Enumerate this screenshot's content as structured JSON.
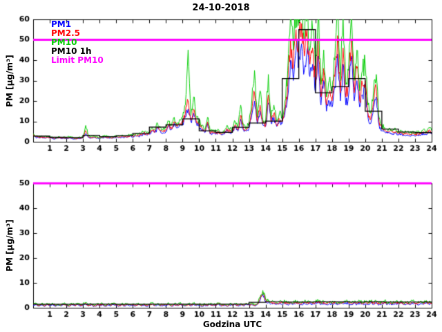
{
  "legend": [
    {
      "label": "PM1",
      "color": "#0000ff"
    },
    {
      "label": "PM2.5",
      "color": "#ff0000"
    },
    {
      "label": "PM10",
      "color": "#00cc00"
    },
    {
      "label": "PM10 1h",
      "color": "#000000"
    },
    {
      "label": "Limit PM10",
      "color": "#ff00ff"
    }
  ],
  "chart_data": [
    {
      "type": "line",
      "title": "24-10-2018",
      "ylabel": "PM [µg/m³]",
      "xlabel": "",
      "xlim": [
        0,
        24
      ],
      "ylim": [
        0,
        60
      ],
      "xticks": [
        1,
        2,
        3,
        4,
        5,
        6,
        7,
        8,
        9,
        10,
        11,
        12,
        13,
        14,
        15,
        16,
        17,
        18,
        19,
        20,
        21,
        22,
        23,
        24
      ],
      "yticks": [
        0,
        10,
        20,
        30,
        40,
        50,
        60
      ],
      "grid": false,
      "legend_position": "top-left-inside",
      "series": [
        {
          "name": "PM1",
          "color": "#0000ff",
          "jitter": 0.15,
          "values": [
            2.8,
            2.2,
            1.9,
            2.2,
            1.9,
            2.1,
            1.9,
            1.7,
            1.5,
            1.8,
            1.6,
            1.7,
            1.5,
            1.9,
            1.7,
            1.4,
            1.5,
            1.7,
            1.9,
            4,
            2.2,
            1.9,
            2.1,
            1.8,
            1.7,
            1.9,
            2.2,
            2,
            1.7,
            1.9,
            2.2,
            2,
            2.4,
            2.1,
            2.2,
            2.6,
            2.4,
            3,
            2.7,
            3.2,
            3.7,
            3.4,
            3.7,
            5.2,
            4.5,
            6.7,
            5.2,
            4.5,
            5.2,
            7.5,
            6,
            9,
            6.7,
            8.2,
            9,
            12,
            16,
            9.7,
            14,
            9,
            7.5,
            6,
            4.5,
            9,
            3.7,
            4.5,
            3.7,
            4.5,
            3.4,
            3.7,
            6,
            4.5,
            4.5,
            7.5,
            5.2,
            11,
            6,
            5.2,
            6.7,
            13,
            20,
            9,
            15,
            8.2,
            7.5,
            19,
            9,
            12,
            7.5,
            10,
            9,
            14,
            22,
            40,
            30,
            45,
            42,
            48,
            35,
            45,
            32,
            38,
            24,
            42,
            18,
            30,
            15,
            20,
            17,
            27,
            43,
            20,
            38,
            18,
            23,
            42,
            20,
            30,
            17,
            23,
            25,
            12,
            9,
            17,
            22,
            8.2,
            5.5,
            4.8,
            4.2,
            4.5,
            3.9,
            4.2,
            3.4,
            3.9,
            3.1,
            3.4,
            2.9,
            3.3,
            2.8,
            3.4,
            3.1,
            4.2,
            3.4,
            4.8,
            3.9
          ]
        },
        {
          "name": "PM2.5",
          "color": "#ff0000",
          "jitter": 0.15,
          "values": [
            3.2,
            2.5,
            2.1,
            2.5,
            2.1,
            2.4,
            2.1,
            1.9,
            1.7,
            2,
            1.8,
            2,
            1.7,
            2.1,
            1.9,
            1.5,
            1.7,
            1.9,
            2.1,
            5.5,
            2.5,
            2.1,
            2.4,
            2,
            1.9,
            2.1,
            2.5,
            2.2,
            2,
            2.1,
            2.5,
            2.3,
            2.7,
            2.4,
            2.5,
            3,
            2.7,
            3.4,
            3,
            3.6,
            4.2,
            3.8,
            4.2,
            5.8,
            5,
            7.4,
            5.8,
            5,
            5.8,
            8.2,
            6.6,
            9.8,
            7.4,
            9,
            9.8,
            14,
            20,
            10.5,
            16,
            9.8,
            8.2,
            6.6,
            5,
            9.8,
            4.1,
            5,
            4.1,
            5,
            3.7,
            4.1,
            6.5,
            5,
            5,
            8.2,
            5.8,
            13,
            6.6,
            5.8,
            7.4,
            15,
            24,
            9.8,
            18,
            9,
            8.2,
            23,
            9.8,
            14,
            8.2,
            11,
            9.8,
            16,
            27,
            50,
            36,
            55,
            50,
            58,
            42,
            55,
            38,
            46,
            28,
            50,
            22,
            36,
            18,
            24,
            20,
            32,
            52,
            24,
            46,
            22,
            28,
            50,
            24,
            36,
            20,
            28,
            30,
            14,
            11,
            20,
            26,
            9.8,
            6.6,
            5.8,
            5,
            5.4,
            4.6,
            5,
            4.1,
            4.6,
            3.7,
            4.1,
            3.5,
            4,
            3.3,
            4.1,
            3.7,
            5,
            4.1,
            5.8,
            4.6
          ]
        },
        {
          "name": "PM10",
          "color": "#00cc00",
          "jitter": 0.15,
          "values": [
            4,
            3,
            2.5,
            3,
            2.5,
            2.8,
            2.5,
            2.2,
            2,
            2.4,
            2.1,
            2.3,
            2,
            2.5,
            2.2,
            1.8,
            2,
            2.2,
            2.5,
            8,
            3,
            2.5,
            2.8,
            2.4,
            2.2,
            2.5,
            3,
            2.6,
            2.3,
            2.5,
            3,
            2.7,
            3.2,
            2.8,
            3,
            3.5,
            3.2,
            4,
            3.6,
            4.2,
            5,
            4.5,
            5,
            7,
            6,
            9,
            7,
            6,
            7,
            10,
            8,
            12,
            9,
            11,
            12,
            18,
            45,
            13,
            22,
            12,
            10,
            8,
            6,
            12,
            5,
            6,
            5,
            6,
            4.5,
            5,
            8,
            6,
            6,
            10,
            7,
            18,
            8,
            7,
            9,
            20,
            35,
            12,
            25,
            11,
            10,
            33,
            12,
            18,
            10,
            14,
            12,
            20,
            35,
            62,
            45,
            65,
            60,
            65,
            50,
            63,
            45,
            55,
            35,
            62,
            28,
            45,
            22,
            30,
            25,
            40,
            65,
            30,
            62,
            28,
            35,
            62,
            30,
            45,
            25,
            35,
            38,
            18,
            14,
            25,
            33,
            12,
            8,
            7,
            6,
            6.5,
            5.5,
            6,
            5,
            5.5,
            4.5,
            5,
            4.2,
            4.8,
            4,
            5,
            4.5,
            6,
            5,
            7,
            5.5
          ]
        },
        {
          "name": "PM10 1h",
          "type": "step",
          "color": "#000000",
          "width": 1.3,
          "values": [
            2.8,
            2.2,
            2.1,
            3.2,
            2.5,
            3,
            4.1,
            7.2,
            8.3,
            11.2,
            5.4,
            4.6,
            7.1,
            9.2,
            10.1,
            31,
            55,
            24,
            27,
            31,
            15,
            6.2,
            4.8,
            4.5
          ]
        },
        {
          "name": "Limit PM10",
          "type": "hline",
          "color": "#ff00ff",
          "width": 3,
          "value": 50
        }
      ]
    },
    {
      "type": "line",
      "title": "",
      "ylabel": "PM [µg/m³]",
      "xlabel": "Godzina UTC",
      "xlim": [
        0,
        24
      ],
      "ylim": [
        0,
        50
      ],
      "xticks": [
        1,
        2,
        3,
        4,
        5,
        6,
        7,
        8,
        9,
        10,
        11,
        12,
        13,
        14,
        15,
        16,
        17,
        18,
        19,
        20,
        21,
        22,
        23,
        24
      ],
      "yticks": [
        0,
        10,
        20,
        30,
        40,
        50
      ],
      "grid": false,
      "series": [
        {
          "name": "PM1",
          "color": "#0000ff",
          "jitter": 0.2,
          "values": [
            1,
            1.5,
            0.7,
            1.2,
            0.6,
            1.3,
            0.9,
            1.4,
            0.6,
            1.1,
            0.7,
            1.2,
            1,
            0.5,
            1.3,
            0.8,
            1.4,
            0.7,
            1.1,
            1.6,
            0.7,
            1.2,
            0.5,
            1,
            0.9,
            1.3,
            0.6,
            1.1,
            0.8,
            1.4,
            1,
            0.6,
            1.2,
            0.7,
            1.3,
            0.9,
            1.1,
            0.7,
            1.4,
            0.8,
            1.2,
            0.6,
            1,
            1.5,
            0.8,
            1.3,
            0.7,
            1.1,
            0.9,
            1.4,
            0.6,
            1.2,
            0.8,
            1.3,
            1,
            0.7,
            1.3,
            0.8,
            1.4,
            0.9,
            1.1,
            0.6,
            1.2,
            0.7,
            1.3,
            0.8,
            1,
            1.5,
            0.7,
            1.1,
            0.6,
            1.2,
            0.9,
            1.3,
            0.7,
            1.2,
            0.8,
            1.4,
            1,
            1.4,
            0.8,
            1.3,
            3,
            5.4,
            2.6,
            2,
            1.6,
            1.8,
            1.3,
            1.7,
            1.5,
            1.9,
            1.2,
            1.7,
            1.4,
            1.8,
            1.6,
            1.2,
            1.9,
            1.4,
            1.8,
            1.3,
            1.7,
            2.1,
            1.3,
            1.8,
            1.2,
            1.6,
            1.4,
            1.9,
            1.2,
            1.7,
            1.5,
            2,
            1.6,
            1.2,
            1.8,
            1.3,
            1.9,
            1.4,
            1.7,
            1.3,
            2,
            1.4,
            1.8,
            1.2,
            1.6,
            2.1,
            1.3,
            1.7,
            1.2,
            1.8,
            1.5,
            1.9,
            1.2,
            1.6,
            1.3,
            2,
            1.6,
            1.2,
            1.8,
            1.3,
            2.1,
            1.5,
            1.7
          ]
        },
        {
          "name": "PM2.5",
          "color": "#ff0000",
          "jitter": 0.2,
          "values": [
            1.2,
            1.7,
            0.9,
            1.4,
            0.8,
            1.5,
            1.1,
            1.6,
            0.8,
            1.3,
            0.9,
            1.4,
            1.2,
            0.7,
            1.5,
            1,
            1.6,
            0.9,
            1.3,
            1.8,
            0.9,
            1.4,
            0.7,
            1.2,
            1.1,
            1.5,
            0.8,
            1.3,
            1,
            1.6,
            1.2,
            0.8,
            1.4,
            0.9,
            1.5,
            1.1,
            1.3,
            0.9,
            1.6,
            1,
            1.4,
            0.8,
            1.2,
            1.7,
            1,
            1.5,
            0.9,
            1.3,
            1.1,
            1.6,
            0.8,
            1.4,
            1,
            1.5,
            1.2,
            0.9,
            1.5,
            1,
            1.6,
            1.1,
            1.3,
            0.8,
            1.4,
            0.9,
            1.5,
            1,
            1.2,
            1.7,
            0.9,
            1.3,
            0.8,
            1.4,
            1.1,
            1.5,
            0.9,
            1.4,
            1,
            1.6,
            1.2,
            1.6,
            1,
            1.5,
            3.5,
            6.3,
            3,
            2.4,
            2,
            2.2,
            1.7,
            2.1,
            1.9,
            2.3,
            1.6,
            2.1,
            1.8,
            2.2,
            2,
            1.6,
            2.3,
            1.8,
            2.2,
            1.7,
            2.1,
            2.5,
            1.7,
            2.2,
            1.6,
            2,
            1.8,
            2.3,
            1.6,
            2.1,
            1.9,
            2.4,
            2,
            1.6,
            2.2,
            1.7,
            2.3,
            1.8,
            2.1,
            1.7,
            2.4,
            1.8,
            2.2,
            1.6,
            2,
            2.5,
            1.7,
            2.1,
            1.6,
            2.2,
            1.9,
            2.3,
            1.6,
            2,
            1.7,
            2.4,
            2,
            1.6,
            2.2,
            1.7,
            2.5,
            1.9,
            2.1
          ]
        },
        {
          "name": "PM10",
          "color": "#00cc00",
          "jitter": 0.2,
          "values": [
            1.5,
            2,
            1.2,
            1.7,
            1.1,
            1.8,
            1.4,
            1.9,
            1.1,
            1.6,
            1.2,
            1.7,
            1.5,
            1,
            1.8,
            1.3,
            1.9,
            1.2,
            1.6,
            2.1,
            1.2,
            1.7,
            1,
            1.5,
            1.4,
            1.8,
            1.1,
            1.6,
            1.3,
            1.9,
            1.5,
            1.1,
            1.7,
            1.2,
            1.8,
            1.4,
            1.6,
            1.2,
            1.9,
            1.3,
            1.7,
            1.1,
            1.5,
            2,
            1.3,
            1.8,
            1.2,
            1.6,
            1.4,
            1.9,
            1.1,
            1.7,
            1.3,
            1.8,
            1.5,
            1.2,
            1.8,
            1.3,
            1.9,
            1.4,
            1.6,
            1.1,
            1.7,
            1.2,
            1.8,
            1.3,
            1.5,
            2,
            1.2,
            1.6,
            1.1,
            1.7,
            1.4,
            1.8,
            1.2,
            1.7,
            1.3,
            1.9,
            1.5,
            1.9,
            1.3,
            1.8,
            4,
            7,
            3.5,
            2.8,
            2.4,
            2.6,
            2.1,
            2.5,
            2.3,
            2.7,
            2,
            2.5,
            2.2,
            2.6,
            2.4,
            2,
            2.7,
            2.2,
            2.6,
            2.1,
            2.5,
            2.9,
            2.1,
            2.6,
            2,
            2.4,
            2.2,
            2.7,
            2,
            2.5,
            2.3,
            2.8,
            2.4,
            2,
            2.6,
            2.1,
            2.7,
            2.2,
            2.5,
            2.1,
            2.8,
            2.2,
            2.6,
            2,
            2.4,
            2.9,
            2.1,
            2.5,
            2,
            2.6,
            2.3,
            2.7,
            2,
            2.4,
            2.1,
            2.8,
            2.4,
            2,
            2.6,
            2.1,
            2.9,
            2.3,
            2.5
          ]
        },
        {
          "name": "PM10 1h",
          "type": "step",
          "color": "#000000",
          "width": 1.2,
          "values": [
            1.4,
            1.4,
            1.4,
            1.5,
            1.5,
            1.4,
            1.4,
            1.5,
            1.5,
            1.5,
            1.4,
            1.5,
            1.5,
            2.2,
            2.5,
            2.3,
            2.3,
            2.4,
            2.4,
            2.3,
            2.4,
            2.3,
            2.3,
            2.3
          ]
        },
        {
          "name": "Limit PM10",
          "type": "hline",
          "color": "#ff00ff",
          "width": 3,
          "value": 50
        }
      ]
    }
  ]
}
